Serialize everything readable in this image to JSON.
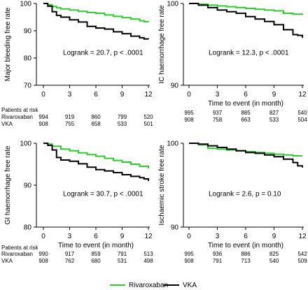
{
  "chart_data": [
    {
      "type": "line",
      "ylabel": "Major bleeding free rate",
      "xlabel": "",
      "x_ticks": [
        0,
        3,
        6,
        9,
        12
      ],
      "y_ticks": [
        70,
        80,
        90,
        100
      ],
      "xlim": [
        0,
        12
      ],
      "ylim": [
        70,
        100
      ],
      "annotation": "Logrank = 20.7, p < .0001",
      "series": [
        {
          "name": "Rivaroxaban",
          "color": "#2ecc2e",
          "x": [
            0,
            0.5,
            1,
            1.5,
            2,
            3,
            4,
            5,
            6,
            7,
            8,
            9,
            10,
            11,
            11.5,
            12
          ],
          "y": [
            100,
            99.5,
            98.9,
            98.4,
            98,
            97.6,
            97.1,
            96.7,
            96.4,
            95.8,
            95.3,
            94.8,
            94.3,
            93.7,
            93.3,
            93.2
          ]
        },
        {
          "name": "VKA",
          "color": "#000000",
          "x": [
            0,
            0.5,
            1,
            1.5,
            2,
            3,
            4,
            5,
            6,
            7,
            8,
            9,
            10,
            11,
            11.5,
            12
          ],
          "y": [
            100,
            99,
            97,
            95.6,
            95,
            94,
            93.2,
            91.6,
            91,
            90.6,
            89.6,
            88.9,
            88,
            87.4,
            87,
            86.9
          ]
        }
      ],
      "risk_table": {
        "title": "Patients at risk",
        "rows": [
          {
            "label": "Rivaroxaban",
            "values": [
              "994",
              "919",
              "860",
              "799",
              "520"
            ]
          },
          {
            "label": "VKA",
            "values": [
              "908",
              "755",
              "658",
              "533",
              "501"
            ]
          }
        ]
      }
    },
    {
      "type": "line",
      "ylabel": "IC haemorrhage free rate",
      "xlabel": "Time to event (in month)",
      "x_ticks": [
        0,
        3,
        6,
        9,
        12
      ],
      "y_ticks": [
        90,
        100
      ],
      "xlim": [
        0,
        12
      ],
      "ylim": [
        90,
        100
      ],
      "annotation": "Logrank = 12.3, p < .0001",
      "series": [
        {
          "name": "Rivaroxaban",
          "color": "#2ecc2e",
          "x": [
            0,
            1,
            2,
            3,
            4,
            5,
            6,
            7,
            8,
            9,
            10,
            11,
            12
          ],
          "y": [
            100,
            99.9,
            99.8,
            99.7,
            99.6,
            99.5,
            99.4,
            99.3,
            99.2,
            99.1,
            98.8,
            98.7,
            98.6
          ]
        },
        {
          "name": "VKA",
          "color": "#000000",
          "x": [
            0,
            1,
            2,
            3,
            4,
            5,
            6,
            7,
            8,
            9,
            10,
            11,
            11.5,
            12
          ],
          "y": [
            100,
            99.8,
            99.5,
            99.2,
            99,
            98.8,
            98.4,
            98.1,
            97.8,
            97.4,
            96.8,
            96.2,
            96.1,
            95.8
          ]
        }
      ],
      "risk_table": {
        "title": "",
        "rows": [
          {
            "label": "",
            "values": [
              "995",
              "937",
              "885",
              "827",
              "540"
            ]
          },
          {
            "label": "",
            "values": [
              "908",
              "758",
              "663",
              "533",
              "504"
            ]
          }
        ]
      }
    },
    {
      "type": "line",
      "ylabel": "GI haemorrhage free rate",
      "xlabel": "Time to event (in month)",
      "x_ticks": [
        0,
        3,
        6,
        9,
        12
      ],
      "y_ticks": [
        80,
        90,
        100
      ],
      "xlim": [
        0,
        12
      ],
      "ylim": [
        80,
        100
      ],
      "annotation": "Logrank = 30.7, p < .0001",
      "series": [
        {
          "name": "Rivaroxaban",
          "color": "#2ecc2e",
          "x": [
            0,
            0.5,
            1,
            2,
            3,
            4,
            5,
            6,
            7,
            8,
            9,
            10,
            11,
            12
          ],
          "y": [
            100,
            99.8,
            99.3,
            98.6,
            98.2,
            97.7,
            97.3,
            96.9,
            96.4,
            95.9,
            95.5,
            95,
            94.5,
            94
          ]
        },
        {
          "name": "VKA",
          "color": "#000000",
          "x": [
            0,
            0.5,
            1,
            1.5,
            2,
            3,
            4,
            5,
            6,
            7,
            8,
            9,
            10,
            11,
            11.5,
            12
          ],
          "y": [
            100,
            99.5,
            98.4,
            96.6,
            96,
            95.7,
            95.1,
            94.3,
            93.7,
            93.4,
            93,
            92.5,
            92.1,
            91.8,
            91.5,
            91
          ]
        }
      ],
      "risk_table": {
        "title": "Patients at risk",
        "rows": [
          {
            "label": "Rivaroxaban",
            "values": [
              "990",
              "917",
              "859",
              "791",
              "513"
            ]
          },
          {
            "label": "VKA",
            "values": [
              "908",
              "762",
              "680",
              "531",
              "498"
            ]
          }
        ]
      }
    },
    {
      "type": "line",
      "ylabel": "Ischaemic stroke free rate",
      "xlabel": "Time to event (in month)",
      "x_ticks": [
        0,
        3,
        6,
        9,
        12
      ],
      "y_ticks": [
        90,
        100
      ],
      "xlim": [
        0,
        12
      ],
      "ylim": [
        90,
        100
      ],
      "annotation": "Logrank = 2.6, p = 0.10",
      "series": [
        {
          "name": "Rivaroxaban",
          "color": "#2ecc2e",
          "x": [
            0,
            1,
            2,
            3,
            4,
            5,
            6,
            7,
            8,
            9,
            10,
            11,
            12
          ],
          "y": [
            100,
            99.8,
            99.4,
            99.3,
            99.2,
            99.1,
            99,
            98.9,
            98.8,
            98.7,
            98.6,
            98.5,
            98.5
          ]
        },
        {
          "name": "VKA",
          "color": "#000000",
          "x": [
            0,
            1,
            2,
            3,
            4,
            5,
            6,
            7,
            8,
            9,
            10,
            11,
            11.5,
            12
          ],
          "y": [
            100,
            99.9,
            99.7,
            99.5,
            99.3,
            99.1,
            98.9,
            98.8,
            98.6,
            98.4,
            98.1,
            97.7,
            97.3,
            97.1
          ]
        }
      ],
      "risk_table": {
        "title": "",
        "rows": [
          {
            "label": "",
            "values": [
              "995",
              "936",
              "886",
              "825",
              "542"
            ]
          },
          {
            "label": "",
            "values": [
              "908",
              "791",
              "713",
              "540",
              "509"
            ]
          }
        ]
      }
    }
  ],
  "legend": [
    {
      "label": "Rivaroxaban",
      "color": "#2ecc2e"
    },
    {
      "label": "VKA",
      "color": "#000000"
    }
  ]
}
